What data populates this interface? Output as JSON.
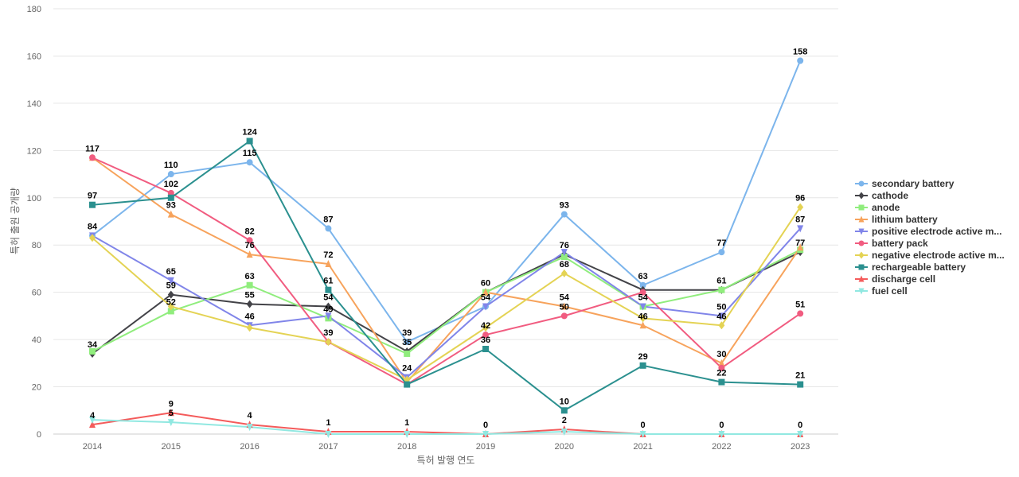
{
  "chart_data": {
    "type": "line",
    "xlabel": "특허 발행 연도",
    "ylabel": "특허 출원 공개량",
    "ylim": [
      0,
      180
    ],
    "yticks": [
      0,
      20,
      40,
      60,
      80,
      100,
      120,
      140,
      160,
      180
    ],
    "grid": true,
    "legend_position": "right",
    "categories": [
      "2014",
      "2015",
      "2016",
      "2017",
      "2018",
      "2019",
      "2020",
      "2021",
      "2022",
      "2023"
    ],
    "series": [
      {
        "name": "secondary battery",
        "color": "#7cb5ec",
        "marker": "circle",
        "values": [
          84,
          110,
          115,
          87,
          39,
          54,
          93,
          63,
          77,
          158
        ]
      },
      {
        "name": "cathode",
        "color": "#434348",
        "marker": "diamond",
        "values": [
          34,
          59,
          55,
          54,
          35,
          60,
          76,
          61,
          61,
          77
        ]
      },
      {
        "name": "anode",
        "color": "#90ed7d",
        "marker": "square",
        "values": [
          35,
          52,
          63,
          49,
          34,
          60,
          75,
          54,
          61,
          78
        ]
      },
      {
        "name": "lithium battery",
        "color": "#f7a35c",
        "marker": "triangle",
        "values": [
          117,
          93,
          76,
          72,
          22,
          60,
          54,
          46,
          30,
          79
        ]
      },
      {
        "name": "positive electrode active m...",
        "color": "#8085e9",
        "marker": "triangle-down",
        "values": [
          84,
          65,
          46,
          50,
          24,
          54,
          77,
          54,
          50,
          87
        ]
      },
      {
        "name": "battery pack",
        "color": "#f15c80",
        "marker": "circle",
        "values": [
          117,
          102,
          82,
          39,
          21,
          42,
          50,
          60,
          28,
          51
        ]
      },
      {
        "name": "negative electrode active m...",
        "color": "#e4d354",
        "marker": "diamond",
        "values": [
          83,
          54,
          45,
          39,
          23,
          45,
          68,
          49,
          46,
          96
        ]
      },
      {
        "name": "rechargeable battery",
        "color": "#2b908f",
        "marker": "square",
        "values": [
          97,
          100,
          124,
          61,
          21,
          36,
          10,
          29,
          22,
          21
        ]
      },
      {
        "name": "discharge cell",
        "color": "#f45b5b",
        "marker": "triangle",
        "values": [
          4,
          9,
          4,
          1,
          1,
          0,
          2,
          0,
          0,
          0
        ]
      },
      {
        "name": "fuel cell",
        "color": "#91e8e1",
        "marker": "triangle-down",
        "values": [
          6,
          5,
          3,
          0,
          0,
          0,
          1,
          0,
          0,
          0
        ]
      }
    ],
    "data_labels": [
      {
        "x": "2014",
        "value": 117
      },
      {
        "x": "2014",
        "value": 97
      },
      {
        "x": "2014",
        "value": 84
      },
      {
        "x": "2014",
        "value": 34
      },
      {
        "x": "2014",
        "value": 4
      },
      {
        "x": "2015",
        "value": 110
      },
      {
        "x": "2015",
        "value": 102
      },
      {
        "x": "2015",
        "value": 93
      },
      {
        "x": "2015",
        "value": 65
      },
      {
        "x": "2015",
        "value": 59
      },
      {
        "x": "2015",
        "value": 52
      },
      {
        "x": "2015",
        "value": 9
      },
      {
        "x": "2015",
        "value": 5
      },
      {
        "x": "2016",
        "value": 124
      },
      {
        "x": "2016",
        "value": 115
      },
      {
        "x": "2016",
        "value": 82
      },
      {
        "x": "2016",
        "value": 76
      },
      {
        "x": "2016",
        "value": 63
      },
      {
        "x": "2016",
        "value": 55
      },
      {
        "x": "2016",
        "value": 46
      },
      {
        "x": "2016",
        "value": 4
      },
      {
        "x": "2017",
        "value": 87
      },
      {
        "x": "2017",
        "value": 72
      },
      {
        "x": "2017",
        "value": 61
      },
      {
        "x": "2017",
        "value": 54
      },
      {
        "x": "2017",
        "value": 49
      },
      {
        "x": "2017",
        "value": 39
      },
      {
        "x": "2017",
        "value": 1
      },
      {
        "x": "2018",
        "value": 39
      },
      {
        "x": "2018",
        "value": 35
      },
      {
        "x": "2018",
        "value": 24
      },
      {
        "x": "2018",
        "value": 1
      },
      {
        "x": "2019",
        "value": 60
      },
      {
        "x": "2019",
        "value": 54
      },
      {
        "x": "2019",
        "value": 42
      },
      {
        "x": "2019",
        "value": 36
      },
      {
        "x": "2019",
        "value": 0
      },
      {
        "x": "2020",
        "value": 93
      },
      {
        "x": "2020",
        "value": 76
      },
      {
        "x": "2020",
        "value": 68
      },
      {
        "x": "2020",
        "value": 54
      },
      {
        "x": "2020",
        "value": 50
      },
      {
        "x": "2020",
        "value": 10
      },
      {
        "x": "2020",
        "value": 2
      },
      {
        "x": "2021",
        "value": 63
      },
      {
        "x": "2021",
        "value": 54
      },
      {
        "x": "2021",
        "value": 46
      },
      {
        "x": "2021",
        "value": 29
      },
      {
        "x": "2021",
        "value": 0
      },
      {
        "x": "2022",
        "value": 77
      },
      {
        "x": "2022",
        "value": 61
      },
      {
        "x": "2022",
        "value": 50
      },
      {
        "x": "2022",
        "value": 46
      },
      {
        "x": "2022",
        "value": 30
      },
      {
        "x": "2022",
        "value": 22
      },
      {
        "x": "2022",
        "value": 0
      },
      {
        "x": "2023",
        "value": 158
      },
      {
        "x": "2023",
        "value": 96
      },
      {
        "x": "2023",
        "value": 87
      },
      {
        "x": "2023",
        "value": 77
      },
      {
        "x": "2023",
        "value": 51
      },
      {
        "x": "2023",
        "value": 21
      },
      {
        "x": "2023",
        "value": 0
      }
    ]
  }
}
